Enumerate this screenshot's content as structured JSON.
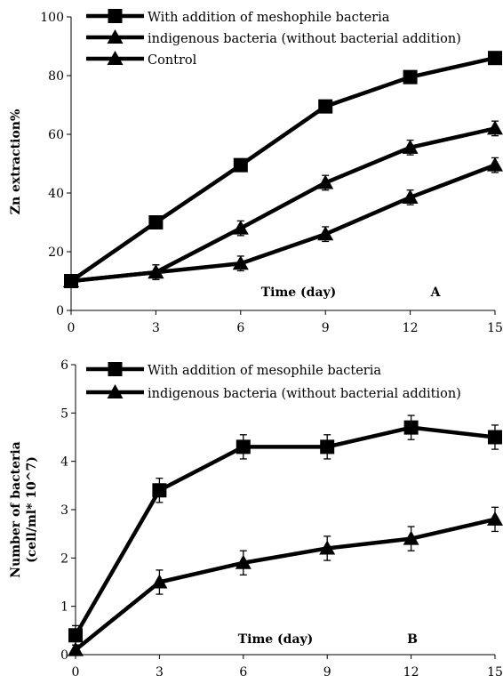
{
  "chart_data": [
    {
      "type": "line",
      "panel_label": "A",
      "xlabel": "Time (day)",
      "ylabel": "Zn extraction%",
      "x": [
        0,
        3,
        6,
        9,
        12,
        15
      ],
      "xlim": [
        0,
        15
      ],
      "ylim": [
        0,
        100
      ],
      "yticks": [
        0,
        20,
        40,
        60,
        80,
        100
      ],
      "xticks": [
        0,
        3,
        6,
        9,
        12,
        15
      ],
      "grid": false,
      "legend_position": "top-left",
      "series": [
        {
          "name": "With addition of meshophile bacteria",
          "marker": "square",
          "values": [
            10,
            30,
            49.5,
            69.5,
            79.5,
            86
          ],
          "errors": [
            0,
            0,
            0,
            0,
            0,
            0
          ]
        },
        {
          "name": "indigenous bacteria (without bacterial addition)",
          "marker": "triangle",
          "values": [
            10,
            13,
            28,
            43.5,
            55.5,
            62
          ],
          "errors": [
            0,
            2.5,
            2.5,
            2.5,
            2.5,
            2.5
          ]
        },
        {
          "name": "Control",
          "marker": "triangle",
          "values": [
            10,
            13,
            16,
            26,
            38.5,
            49.5
          ],
          "errors": [
            0,
            2.5,
            2.5,
            2.5,
            2.5,
            2.5
          ]
        }
      ]
    },
    {
      "type": "line",
      "panel_label": "B",
      "xlabel": "Time (day)",
      "ylabel_lines": [
        "Number of bacteria",
        "(cell/ml* 10^7)"
      ],
      "x": [
        0,
        3,
        6,
        9,
        12,
        15
      ],
      "xlim": [
        0,
        15
      ],
      "ylim": [
        0,
        6
      ],
      "yticks": [
        0,
        1,
        2,
        3,
        4,
        5,
        6
      ],
      "xticks": [
        0,
        3,
        6,
        9,
        12,
        15
      ],
      "grid": false,
      "legend_position": "top-left",
      "series": [
        {
          "name": "With addition of mesophile bacteria",
          "marker": "square",
          "values": [
            0.4,
            3.4,
            4.3,
            4.3,
            4.7,
            4.5
          ],
          "errors": [
            0.2,
            0.25,
            0.25,
            0.25,
            0.25,
            0.25
          ]
        },
        {
          "name": "indigenous bacteria (without bacterial addition)",
          "marker": "triangle",
          "values": [
            0.1,
            1.5,
            1.9,
            2.2,
            2.4,
            2.8
          ],
          "errors": [
            0,
            0.25,
            0.25,
            0.25,
            0.25,
            0.25
          ]
        }
      ]
    }
  ]
}
